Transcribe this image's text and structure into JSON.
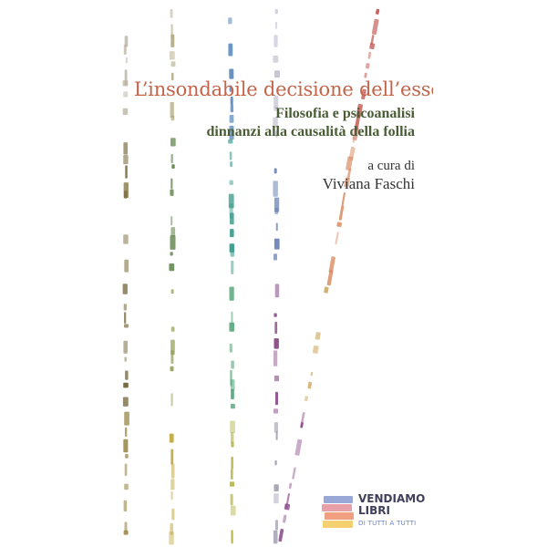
{
  "book": {
    "title": "L’insondabile decisione dell’essere",
    "subtitle_line1": "Filosofia e psicoanalisi",
    "subtitle_line2": "dinnanzi alla causalità della follia",
    "curator_label": "a cura di",
    "curator_name": "Viviana Faschi"
  },
  "publisher": {
    "name_line1": "VENDIAMO",
    "name_line2": "LIBRI",
    "tagline": "DI TUTTI A TUTTI"
  },
  "colors": {
    "title": "#c2654a",
    "subtitle": "#4a5c34",
    "stripe_olive": "#7a6a3a",
    "stripe_green": "#4f7a3a",
    "stripe_teal": "#3a9a8a",
    "stripe_purple": "#8a4a8a",
    "stripe_red": "#c0504a"
  }
}
